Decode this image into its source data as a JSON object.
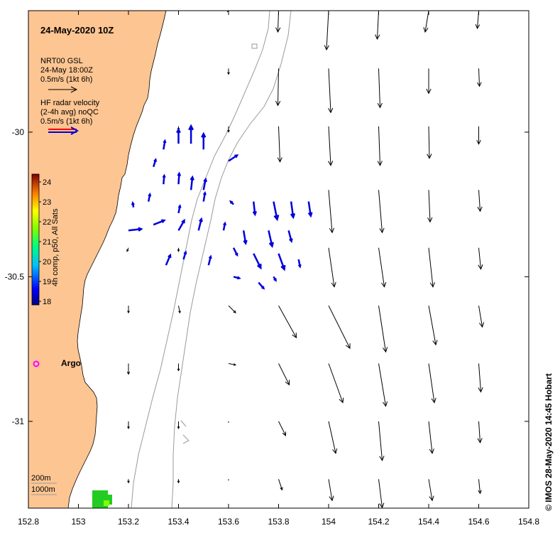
{
  "title": "24-May-2020 10Z",
  "model_legend": {
    "line1": "NRT00 GSL",
    "line2": "24-May 18:00Z",
    "line3": "0.5m/s (1kt 6h)"
  },
  "radar_legend": {
    "line1": "HF radar velocity",
    "line2": "(2-4h avg) noQC",
    "line3": "0.5m/s (1kt 6h)"
  },
  "colorbar": {
    "label": "4h comp, p50, All Sats",
    "ticks": [
      "24",
      "23",
      "22",
      "21",
      "20",
      "19",
      "18"
    ]
  },
  "argo_label": "Argo",
  "depth_legend": {
    "line1": "200m",
    "line2": "1000m"
  },
  "credit": "© IMOS 28-May-2020 14:45 Hobart",
  "x_ticks": [
    "152.8",
    "153",
    "153.2",
    "153.4",
    "153.6",
    "153.8",
    "154",
    "154.2",
    "154.4",
    "154.6",
    "154.8"
  ],
  "y_ticks": [
    "-30",
    "-30.5",
    "-31"
  ],
  "colors": {
    "land": "#fdc592",
    "radar_arrow": "#0000dd",
    "model_arrow": "#000000",
    "isobath": "#9a9a9a",
    "argo": "#ff00ff",
    "sst_patch": "#22cc22"
  },
  "chart_data": {
    "type": "map",
    "lon_range": [
      152.8,
      154.8
    ],
    "lat_range": [
      -31.3,
      -29.58
    ],
    "model_currents": [
      {
        "lon": 153.6,
        "lat": -29.58,
        "u": -0.02,
        "v": -0.02
      },
      {
        "lon": 153.8,
        "lat": -29.58,
        "u": -0.01,
        "v": -0.3
      },
      {
        "lon": 154.0,
        "lat": -29.58,
        "u": -0.03,
        "v": -0.55
      },
      {
        "lon": 154.2,
        "lat": -29.58,
        "u": -0.02,
        "v": -0.4
      },
      {
        "lon": 154.4,
        "lat": -29.58,
        "u": -0.05,
        "v": -0.3
      },
      {
        "lon": 154.6,
        "lat": -29.58,
        "u": -0.02,
        "v": -0.25
      },
      {
        "lon": 153.6,
        "lat": -29.78,
        "u": 0.0,
        "v": -0.08
      },
      {
        "lon": 153.8,
        "lat": -29.78,
        "u": -0.01,
        "v": -0.52
      },
      {
        "lon": 154.0,
        "lat": -29.78,
        "u": 0.03,
        "v": -0.62
      },
      {
        "lon": 154.2,
        "lat": -29.78,
        "u": 0.02,
        "v": -0.55
      },
      {
        "lon": 154.4,
        "lat": -29.78,
        "u": 0.0,
        "v": -0.35
      },
      {
        "lon": 154.6,
        "lat": -29.78,
        "u": 0.01,
        "v": -0.25
      },
      {
        "lon": 153.4,
        "lat": -29.98,
        "u": 0.0,
        "v": -0.05
      },
      {
        "lon": 153.6,
        "lat": -29.98,
        "u": 0.0,
        "v": -0.08
      },
      {
        "lon": 153.8,
        "lat": -29.98,
        "u": 0.02,
        "v": -0.5
      },
      {
        "lon": 154.0,
        "lat": -29.98,
        "u": 0.03,
        "v": -0.55
      },
      {
        "lon": 154.2,
        "lat": -29.98,
        "u": 0.02,
        "v": -0.55
      },
      {
        "lon": 154.4,
        "lat": -29.98,
        "u": 0.01,
        "v": -0.45
      },
      {
        "lon": 154.6,
        "lat": -29.98,
        "u": 0.0,
        "v": -0.25
      },
      {
        "lon": 154.0,
        "lat": -30.2,
        "u": 0.05,
        "v": -0.6
      },
      {
        "lon": 154.2,
        "lat": -30.2,
        "u": 0.05,
        "v": -0.6
      },
      {
        "lon": 154.4,
        "lat": -30.2,
        "u": 0.02,
        "v": -0.45
      },
      {
        "lon": 154.6,
        "lat": -30.2,
        "u": 0.02,
        "v": -0.3
      },
      {
        "lon": 153.2,
        "lat": -30.4,
        "u": -0.02,
        "v": -0.05
      },
      {
        "lon": 153.4,
        "lat": -30.4,
        "u": 0.0,
        "v": -0.05
      },
      {
        "lon": 154.0,
        "lat": -30.4,
        "u": 0.08,
        "v": -0.55
      },
      {
        "lon": 154.2,
        "lat": -30.4,
        "u": 0.08,
        "v": -0.55
      },
      {
        "lon": 154.4,
        "lat": -30.4,
        "u": 0.06,
        "v": -0.55
      },
      {
        "lon": 154.6,
        "lat": -30.4,
        "u": 0.03,
        "v": -0.3
      },
      {
        "lon": 153.2,
        "lat": -30.6,
        "u": 0.0,
        "v": -0.1
      },
      {
        "lon": 153.4,
        "lat": -30.6,
        "u": 0.02,
        "v": -0.1
      },
      {
        "lon": 153.6,
        "lat": -30.6,
        "u": 0.1,
        "v": -0.1
      },
      {
        "lon": 153.8,
        "lat": -30.6,
        "u": 0.25,
        "v": -0.45
      },
      {
        "lon": 154.0,
        "lat": -30.6,
        "u": 0.3,
        "v": -0.6
      },
      {
        "lon": 154.2,
        "lat": -30.6,
        "u": 0.1,
        "v": -0.65
      },
      {
        "lon": 154.4,
        "lat": -30.6,
        "u": 0.1,
        "v": -0.55
      },
      {
        "lon": 154.6,
        "lat": -30.6,
        "u": 0.05,
        "v": -0.3
      },
      {
        "lon": 153.2,
        "lat": -30.8,
        "u": 0.0,
        "v": -0.15
      },
      {
        "lon": 153.4,
        "lat": -30.8,
        "u": 0.0,
        "v": -0.1
      },
      {
        "lon": 153.6,
        "lat": -30.8,
        "u": 0.1,
        "v": -0.02
      },
      {
        "lon": 153.8,
        "lat": -30.8,
        "u": 0.15,
        "v": -0.3
      },
      {
        "lon": 154.0,
        "lat": -30.8,
        "u": 0.2,
        "v": -0.55
      },
      {
        "lon": 154.2,
        "lat": -30.8,
        "u": 0.1,
        "v": -0.6
      },
      {
        "lon": 154.4,
        "lat": -30.8,
        "u": 0.08,
        "v": -0.55
      },
      {
        "lon": 154.6,
        "lat": -30.8,
        "u": 0.03,
        "v": -0.4
      },
      {
        "lon": 153.2,
        "lat": -31.0,
        "u": 0.0,
        "v": -0.1
      },
      {
        "lon": 153.4,
        "lat": -31.0,
        "u": 0.0,
        "v": -0.1
      },
      {
        "lon": 153.6,
        "lat": -31.0,
        "u": 0.0,
        "v": -0.02
      },
      {
        "lon": 153.8,
        "lat": -31.0,
        "u": 0.1,
        "v": -0.2
      },
      {
        "lon": 154.0,
        "lat": -31.0,
        "u": 0.1,
        "v": -0.45
      },
      {
        "lon": 154.2,
        "lat": -31.0,
        "u": 0.05,
        "v": -0.55
      },
      {
        "lon": 154.4,
        "lat": -31.0,
        "u": 0.05,
        "v": -0.45
      },
      {
        "lon": 154.6,
        "lat": -31.0,
        "u": 0.02,
        "v": -0.3
      },
      {
        "lon": 153.2,
        "lat": -31.2,
        "u": 0.0,
        "v": -0.05
      },
      {
        "lon": 153.4,
        "lat": -31.2,
        "u": 0.0,
        "v": -0.05
      },
      {
        "lon": 153.6,
        "lat": -31.2,
        "u": 0.0,
        "v": -0.02
      },
      {
        "lon": 153.8,
        "lat": -31.2,
        "u": 0.05,
        "v": -0.15
      },
      {
        "lon": 154.0,
        "lat": -31.2,
        "u": 0.05,
        "v": -0.3
      },
      {
        "lon": 154.2,
        "lat": -31.2,
        "u": 0.05,
        "v": -0.4
      },
      {
        "lon": 154.4,
        "lat": -31.2,
        "u": 0.05,
        "v": -0.3
      },
      {
        "lon": 154.6,
        "lat": -31.2,
        "u": 0.02,
        "v": -0.2
      }
    ],
    "radar_currents": [
      {
        "lon": 153.34,
        "lat": -30.06,
        "u": 0.02,
        "v": 0.12
      },
      {
        "lon": 153.4,
        "lat": -30.04,
        "u": 0.0,
        "v": 0.2
      },
      {
        "lon": 153.45,
        "lat": -30.04,
        "u": 0.0,
        "v": 0.25
      },
      {
        "lon": 153.5,
        "lat": -30.06,
        "u": 0.0,
        "v": 0.22
      },
      {
        "lon": 153.3,
        "lat": -30.12,
        "u": 0.03,
        "v": 0.1
      },
      {
        "lon": 153.34,
        "lat": -30.18,
        "u": 0.01,
        "v": 0.12
      },
      {
        "lon": 153.4,
        "lat": -30.18,
        "u": 0.01,
        "v": 0.15
      },
      {
        "lon": 153.45,
        "lat": -30.2,
        "u": 0.02,
        "v": 0.18
      },
      {
        "lon": 153.5,
        "lat": -30.2,
        "u": 0.03,
        "v": 0.15
      },
      {
        "lon": 153.22,
        "lat": -30.26,
        "u": -0.01,
        "v": 0.06
      },
      {
        "lon": 153.28,
        "lat": -30.24,
        "u": 0.02,
        "v": 0.1
      },
      {
        "lon": 153.4,
        "lat": -30.28,
        "u": 0.02,
        "v": 0.1
      },
      {
        "lon": 153.5,
        "lat": -30.24,
        "u": 0.02,
        "v": 0.12
      },
      {
        "lon": 153.6,
        "lat": -30.1,
        "u": 0.12,
        "v": 0.08
      },
      {
        "lon": 153.62,
        "lat": -30.25,
        "u": -0.04,
        "v": 0.04
      },
      {
        "lon": 153.7,
        "lat": -30.24,
        "u": 0.02,
        "v": -0.18
      },
      {
        "lon": 153.78,
        "lat": -30.24,
        "u": 0.05,
        "v": -0.25
      },
      {
        "lon": 153.85,
        "lat": -30.24,
        "u": 0.03,
        "v": -0.22
      },
      {
        "lon": 153.92,
        "lat": -30.24,
        "u": 0.03,
        "v": -0.2
      },
      {
        "lon": 153.2,
        "lat": -30.34,
        "u": 0.18,
        "v": 0.02
      },
      {
        "lon": 153.3,
        "lat": -30.32,
        "u": 0.15,
        "v": 0.06
      },
      {
        "lon": 153.4,
        "lat": -30.34,
        "u": 0.08,
        "v": 0.14
      },
      {
        "lon": 153.48,
        "lat": -30.34,
        "u": 0.04,
        "v": 0.16
      },
      {
        "lon": 153.58,
        "lat": -30.34,
        "u": 0.02,
        "v": 0.1
      },
      {
        "lon": 153.66,
        "lat": -30.34,
        "u": 0.03,
        "v": -0.18
      },
      {
        "lon": 153.76,
        "lat": -30.34,
        "u": 0.05,
        "v": -0.22
      },
      {
        "lon": 153.84,
        "lat": -30.34,
        "u": 0.04,
        "v": -0.15
      },
      {
        "lon": 153.35,
        "lat": -30.46,
        "u": 0.06,
        "v": 0.14
      },
      {
        "lon": 153.42,
        "lat": -30.44,
        "u": 0.03,
        "v": 0.1
      },
      {
        "lon": 153.52,
        "lat": -30.46,
        "u": 0.03,
        "v": 0.12
      },
      {
        "lon": 153.62,
        "lat": -30.4,
        "u": 0.05,
        "v": -0.1
      },
      {
        "lon": 153.7,
        "lat": -30.42,
        "u": 0.1,
        "v": -0.2
      },
      {
        "lon": 153.8,
        "lat": -30.42,
        "u": 0.08,
        "v": -0.22
      },
      {
        "lon": 153.88,
        "lat": -30.44,
        "u": 0.02,
        "v": -0.1
      },
      {
        "lon": 153.62,
        "lat": -30.5,
        "u": 0.08,
        "v": -0.02
      },
      {
        "lon": 153.72,
        "lat": -30.52,
        "u": 0.07,
        "v": -0.08
      },
      {
        "lon": 153.78,
        "lat": -30.5,
        "u": 0.03,
        "v": -0.05
      }
    ],
    "colorbar_range": [
      18,
      24
    ],
    "argo": {
      "lon": 152.85,
      "lat": -30.8
    }
  }
}
